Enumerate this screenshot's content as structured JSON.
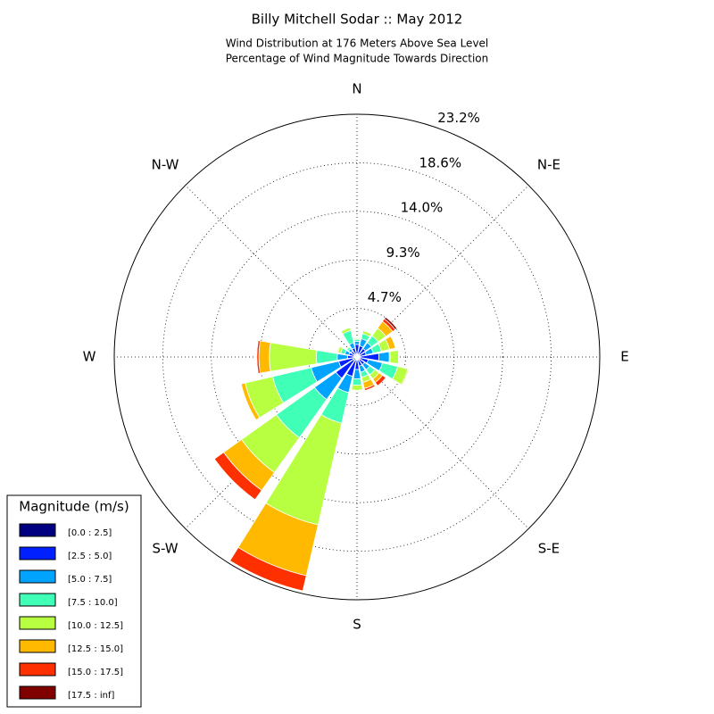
{
  "chart_data": {
    "type": "windrose",
    "title": "Billy Mitchell Sodar :: May 2012",
    "subtitle": [
      "Wind Distribution at 176 Meters Above Sea Level",
      "Percentage of Wind Magnitude Towards Direction"
    ],
    "direction_labels": [
      "N",
      "N-E",
      "E",
      "S-E",
      "S",
      "S-W",
      "W",
      "N-W"
    ],
    "rlim": [
      0,
      23.25
    ],
    "rticks": [
      {
        "value": 4.65,
        "label": "4.7%"
      },
      {
        "value": 9.3,
        "label": "9.3%"
      },
      {
        "value": 13.95,
        "label": "14.0%"
      },
      {
        "value": 18.6,
        "label": "18.6%"
      },
      {
        "value": 23.25,
        "label": "23.2%"
      }
    ],
    "grid": true,
    "legend_title": "Magnitude (m/s)",
    "legend_position": "lower left",
    "series": [
      {
        "name": "[0.0 : 2.5]",
        "color": "#000080",
        "values": [
          0.3,
          0.3,
          0.3,
          0.3,
          0.3,
          0.3,
          0.3,
          0.3,
          0.3,
          0.3,
          0.4,
          0.4,
          0.3,
          0.3,
          0.3,
          0.3
        ]
      },
      {
        "name": "[2.5 : 5.0]",
        "color": "#0020ff",
        "values": [
          0.9,
          0.8,
          0.7,
          0.6,
          1.8,
          0.8,
          0.6,
          0.6,
          0.9,
          1.6,
          2.1,
          1.4,
          0.6,
          0.5,
          0.4,
          0.6
        ]
      },
      {
        "name": "[5.0 : 7.5]",
        "color": "#00a4ff",
        "values": [
          0.3,
          0.7,
          0.7,
          0.7,
          1.0,
          1.4,
          0.6,
          0.6,
          0.9,
          1.6,
          2.5,
          2.7,
          1.0,
          0.4,
          0.3,
          0.5
        ]
      },
      {
        "name": "[7.5 : 10.0]",
        "color": "#40ffb7",
        "values": [
          0.2,
          0.5,
          0.8,
          0.8,
          0.1,
          1.5,
          0.6,
          0.5,
          0.6,
          3.0,
          4.5,
          3.8,
          2.0,
          0.4,
          0.2,
          1.2
        ]
      },
      {
        "name": "[10.0 : 12.5]",
        "color": "#b7ff40",
        "values": [
          0.1,
          0.3,
          0.9,
          0.8,
          0.8,
          1.0,
          0.5,
          0.5,
          0.5,
          10.0,
          4.1,
          2.7,
          4.5,
          0.3,
          0.1,
          0.3
        ]
      },
      {
        "name": "[12.5 : 15.0]",
        "color": "#ffb900",
        "values": [
          0,
          0,
          0.8,
          0.6,
          0,
          0.1,
          0.4,
          0.6,
          0,
          5.0,
          2.1,
          0.4,
          1.0,
          0.1,
          0,
          0
        ]
      },
      {
        "name": "[15.0 : 17.5]",
        "color": "#ff3000",
        "values": [
          0,
          0,
          0.3,
          0,
          0,
          0,
          0.4,
          0.2,
          0,
          1.5,
          1.1,
          0,
          0.2,
          0,
          0,
          0
        ]
      },
      {
        "name": "[17.5 : inf]",
        "color": "#800000",
        "values": [
          0,
          0,
          0.2,
          0,
          0,
          0,
          0,
          0,
          0,
          0,
          0,
          0,
          0,
          0,
          0,
          0
        ]
      }
    ]
  }
}
